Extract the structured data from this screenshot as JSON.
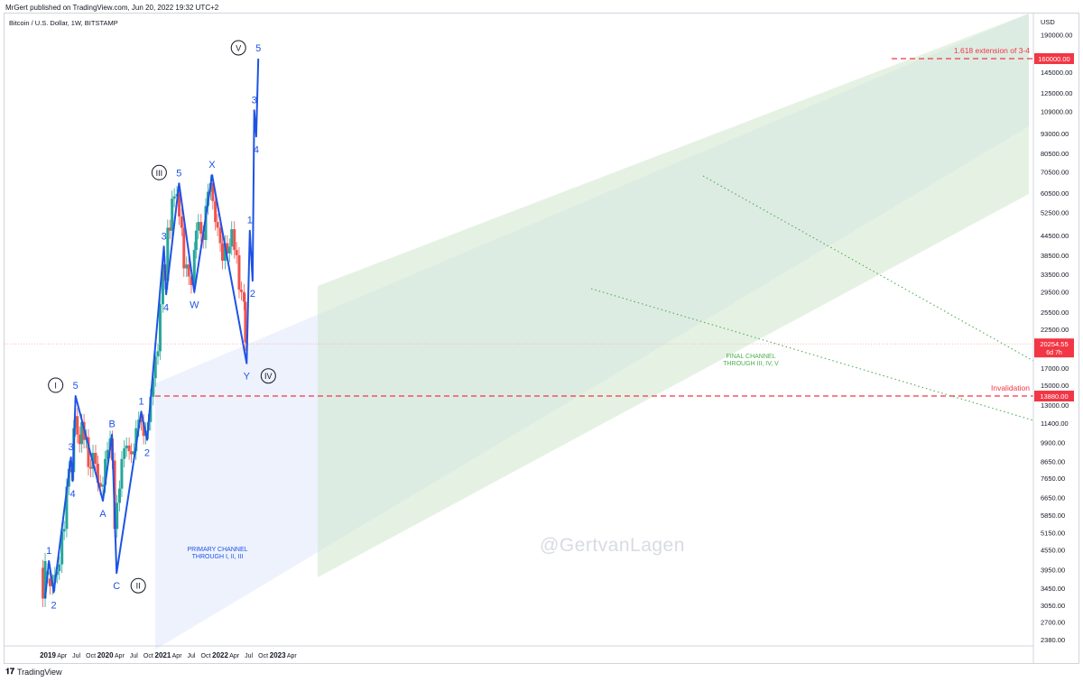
{
  "header": {
    "published": "MrGert published on TradingView.com, Jun 20, 2022 19:32 UTC+2"
  },
  "legend": {
    "symbol": "Bitcoin / U.S. Dollar, 1W, BITSTAMP"
  },
  "footer": {
    "brand_icon": "tradingview-logo-icon",
    "brand": "TradingView"
  },
  "watermark": "@GertvanLagen",
  "colors": {
    "wave": "#1e53e5",
    "bull": "#26a69a",
    "bear": "#ef5350",
    "alert": "#f23645",
    "trend": "#4caf50",
    "primary_channel": "#dfe7fb",
    "final_channel": "#cfe7cc"
  },
  "chart_data": {
    "type": "candlestick",
    "series_name": "Bitcoin / U.S. Dollar, 1W, BITSTAMP",
    "currency": "USD",
    "y_scale": "log",
    "ylim": [
      2200,
      210000
    ],
    "x_tick_labels": [
      "2019",
      "Apr",
      "Jul",
      "Oct",
      "2020",
      "Apr",
      "Jul",
      "Oct",
      "2021",
      "Apr",
      "Jul",
      "Oct",
      "2022",
      "Apr",
      "Jul",
      "Oct",
      "2023",
      "Apr"
    ],
    "y_tick_labels": [
      "190000.00",
      "145000.00",
      "125000.00",
      "109000.00",
      "93000.00",
      "80500.00",
      "70500.00",
      "60500.00",
      "52500.00",
      "44500.00",
      "38500.00",
      "33500.00",
      "29500.00",
      "25500.00",
      "22500.00",
      "17000.00",
      "15000.00",
      "13000.00",
      "11400.00",
      "9900.00",
      "8650.00",
      "7650.00",
      "6650.00",
      "5850.00",
      "5150.00",
      "4550.00",
      "3950.00",
      "3450.00",
      "3050.00",
      "2700.00",
      "2380.00"
    ],
    "y_unit_label": "USD",
    "current_price": {
      "label": "20254.55",
      "sublabel": "6d 7h",
      "value": 20254.55
    },
    "levels": [
      {
        "value": 160000,
        "label": "160000.00",
        "text": "1.618 extension of 3-4"
      },
      {
        "value": 13880,
        "label": "13880.00",
        "text": "Invalidation"
      }
    ],
    "wave_path": [
      {
        "date": "2018-12-15",
        "price": 3200
      },
      {
        "date": "2019-01-08",
        "price": 4200,
        "label": "1"
      },
      {
        "date": "2019-02-08",
        "price": 3350,
        "label": "2"
      },
      {
        "date": "2019-05-28",
        "price": 8900,
        "label": "3"
      },
      {
        "date": "2019-06-08",
        "price": 7500,
        "label": "4"
      },
      {
        "date": "2019-06-26",
        "price": 13880,
        "label": "5",
        "major": "I"
      },
      {
        "date": "2019-12-17",
        "price": 6500,
        "label": "A"
      },
      {
        "date": "2020-02-13",
        "price": 10500,
        "label": "B"
      },
      {
        "date": "2020-03-13",
        "price": 3850,
        "label": "C",
        "major": "II"
      },
      {
        "date": "2020-08-17",
        "price": 12400,
        "label": "1"
      },
      {
        "date": "2020-09-23",
        "price": 10100,
        "label": "2"
      },
      {
        "date": "2021-01-08",
        "price": 41000,
        "label": "3"
      },
      {
        "date": "2021-01-22",
        "price": 29000,
        "label": "4"
      },
      {
        "date": "2021-04-14",
        "price": 64800,
        "label": "5",
        "major": "III"
      },
      {
        "date": "2021-07-20",
        "price": 29500,
        "label": "W"
      },
      {
        "date": "2021-11-10",
        "price": 68800,
        "label": "X"
      },
      {
        "date": "2022-06-18",
        "price": 17600,
        "label": "Y",
        "major": "IV"
      },
      {
        "date": "2022-07-08",
        "price": 46000,
        "label": "1"
      },
      {
        "date": "2022-07-26",
        "price": 32000,
        "label": "2"
      },
      {
        "date": "2022-08-05",
        "price": 110000,
        "label": "3"
      },
      {
        "date": "2022-08-18",
        "price": 91000,
        "label": "4"
      },
      {
        "date": "2022-08-31",
        "price": 160000,
        "label": "5",
        "major": "V"
      }
    ],
    "candles_approx": [
      [
        "2018-12-01",
        4000,
        3200
      ],
      [
        "2018-12-15",
        3200,
        4200
      ],
      [
        "2019-01-01",
        3800,
        3900
      ],
      [
        "2019-01-15",
        3700,
        3500
      ],
      [
        "2019-02-01",
        3500,
        3600
      ],
      [
        "2019-02-15",
        3600,
        3800
      ],
      [
        "2019-03-01",
        3800,
        3900
      ],
      [
        "2019-03-15",
        3900,
        4100
      ],
      [
        "2019-04-01",
        4100,
        5200
      ],
      [
        "2019-04-15",
        5200,
        5300
      ],
      [
        "2019-05-01",
        5300,
        7200
      ],
      [
        "2019-05-15",
        7200,
        8200
      ],
      [
        "2019-06-01",
        8200,
        8000
      ],
      [
        "2019-06-15",
        8000,
        11000
      ],
      [
        "2019-06-26",
        11000,
        12000
      ],
      [
        "2019-07-08",
        12000,
        10500
      ],
      [
        "2019-07-22",
        10500,
        9800
      ],
      [
        "2019-08-05",
        9800,
        11500
      ],
      [
        "2019-08-19",
        11500,
        10100
      ],
      [
        "2019-09-02",
        10100,
        10300
      ],
      [
        "2019-09-16",
        10300,
        8300
      ],
      [
        "2019-10-01",
        8300,
        8200
      ],
      [
        "2019-10-15",
        8200,
        9200
      ],
      [
        "2019-11-01",
        9200,
        8500
      ],
      [
        "2019-11-15",
        8500,
        7400
      ],
      [
        "2019-12-01",
        7400,
        7200
      ],
      [
        "2019-12-17",
        7200,
        7300
      ],
      [
        "2020-01-01",
        7300,
        8800
      ],
      [
        "2020-01-15",
        8800,
        9400
      ],
      [
        "2020-02-01",
        9400,
        10200
      ],
      [
        "2020-02-15",
        10200,
        8700
      ],
      [
        "2020-03-01",
        8700,
        5300
      ],
      [
        "2020-03-16",
        5300,
        6400
      ],
      [
        "2020-04-01",
        6400,
        7100
      ],
      [
        "2020-04-15",
        7100,
        8800
      ],
      [
        "2020-05-01",
        8800,
        9500
      ],
      [
        "2020-05-15",
        9500,
        9700
      ],
      [
        "2020-06-01",
        9700,
        9300
      ],
      [
        "2020-06-15",
        9300,
        9100
      ],
      [
        "2020-07-01",
        9100,
        9300
      ],
      [
        "2020-07-15",
        9300,
        11000
      ],
      [
        "2020-08-01",
        11000,
        11700
      ],
      [
        "2020-08-17",
        11700,
        11500
      ],
      [
        "2020-09-01",
        11500,
        10400
      ],
      [
        "2020-09-15",
        10400,
        10800
      ],
      [
        "2020-10-01",
        10800,
        11500
      ],
      [
        "2020-10-15",
        11500,
        13800
      ],
      [
        "2020-11-01",
        13800,
        15800
      ],
      [
        "2020-11-15",
        15800,
        18500
      ],
      [
        "2020-12-01",
        18500,
        19200
      ],
      [
        "2020-12-15",
        19200,
        27000
      ],
      [
        "2021-01-01",
        27000,
        36000
      ],
      [
        "2021-01-15",
        36000,
        32000
      ],
      [
        "2021-02-01",
        32000,
        47000
      ],
      [
        "2021-02-15",
        47000,
        46000
      ],
      [
        "2021-03-01",
        46000,
        58000
      ],
      [
        "2021-03-15",
        58000,
        59000
      ],
      [
        "2021-04-01",
        59000,
        60000
      ],
      [
        "2021-04-15",
        60000,
        51000
      ],
      [
        "2021-05-01",
        51000,
        47000
      ],
      [
        "2021-05-15",
        47000,
        35000
      ],
      [
        "2021-06-01",
        35000,
        36000
      ],
      [
        "2021-06-15",
        36000,
        33000
      ],
      [
        "2021-07-01",
        33000,
        31000
      ],
      [
        "2021-07-20",
        31000,
        40000
      ],
      [
        "2021-08-01",
        40000,
        46000
      ],
      [
        "2021-08-15",
        46000,
        49000
      ],
      [
        "2021-09-01",
        49000,
        45000
      ],
      [
        "2021-09-15",
        45000,
        43000
      ],
      [
        "2021-10-01",
        43000,
        55000
      ],
      [
        "2021-10-15",
        55000,
        61000
      ],
      [
        "2021-11-01",
        61000,
        65000
      ],
      [
        "2021-11-15",
        65000,
        57000
      ],
      [
        "2021-12-01",
        57000,
        49000
      ],
      [
        "2021-12-15",
        49000,
        47000
      ],
      [
        "2022-01-01",
        47000,
        42000
      ],
      [
        "2022-01-15",
        42000,
        37000
      ],
      [
        "2022-02-01",
        37000,
        42000
      ],
      [
        "2022-02-15",
        42000,
        39000
      ],
      [
        "2022-03-01",
        39000,
        41000
      ],
      [
        "2022-03-15",
        41000,
        46500
      ],
      [
        "2022-04-01",
        46500,
        40000
      ],
      [
        "2022-04-15",
        40000,
        38500
      ],
      [
        "2022-05-01",
        38500,
        30000
      ],
      [
        "2022-05-15",
        30000,
        29500
      ],
      [
        "2022-06-01",
        29500,
        27500
      ],
      [
        "2022-06-10",
        27500,
        20500
      ],
      [
        "2022-06-18",
        20500,
        20254.55
      ]
    ],
    "annotations": [
      {
        "text": "PRIMARY CHANNEL\nTHROUGH I, II, III",
        "color": "#1e53e5"
      },
      {
        "text": "FINAL CHANNEL\nTHROUGH III, IV, V",
        "color": "#4caf50"
      }
    ],
    "grid": false
  }
}
